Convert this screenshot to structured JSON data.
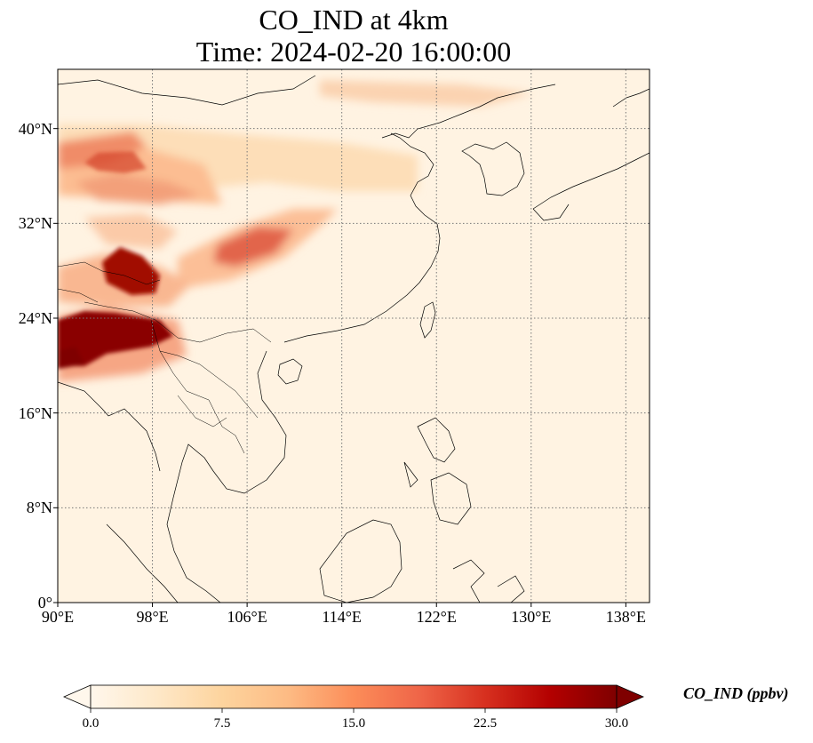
{
  "title": {
    "line1": "CO_IND at 4km",
    "line2": "Time: 2024-02-20 16:00:00"
  },
  "map": {
    "lon_range": [
      90,
      140
    ],
    "lat_range": [
      0,
      45
    ],
    "gridlines": true,
    "gridline_style": "dotted",
    "coastlines": true,
    "lat_ticks": [
      {
        "value": 40,
        "label": "40°N"
      },
      {
        "value": 32,
        "label": "32°N"
      },
      {
        "value": 24,
        "label": "24°N"
      },
      {
        "value": 16,
        "label": "16°N"
      },
      {
        "value": 8,
        "label": "8°N"
      },
      {
        "value": 0,
        "label": "0°"
      }
    ],
    "lon_ticks": [
      {
        "value": 90,
        "label": "90°E"
      },
      {
        "value": 98,
        "label": "98°E"
      },
      {
        "value": 106,
        "label": "106°E"
      },
      {
        "value": 114,
        "label": "114°E"
      },
      {
        "value": 122,
        "label": "122°E"
      },
      {
        "value": 130,
        "label": "130°E"
      },
      {
        "value": 138,
        "label": "138°E"
      }
    ]
  },
  "colorbar": {
    "label": "CO_IND (ppbv)",
    "min": 0,
    "max": 30,
    "extend": "both",
    "colormap": "OrRd",
    "ticks": [
      "0.0",
      "7.5",
      "15.0",
      "22.5",
      "30.0"
    ],
    "colors": [
      "#fff7ec",
      "#fee8c8",
      "#fdd49e",
      "#fdbb84",
      "#fc8d59",
      "#ef6548",
      "#d7301f",
      "#b30000",
      "#7f0000"
    ]
  }
}
